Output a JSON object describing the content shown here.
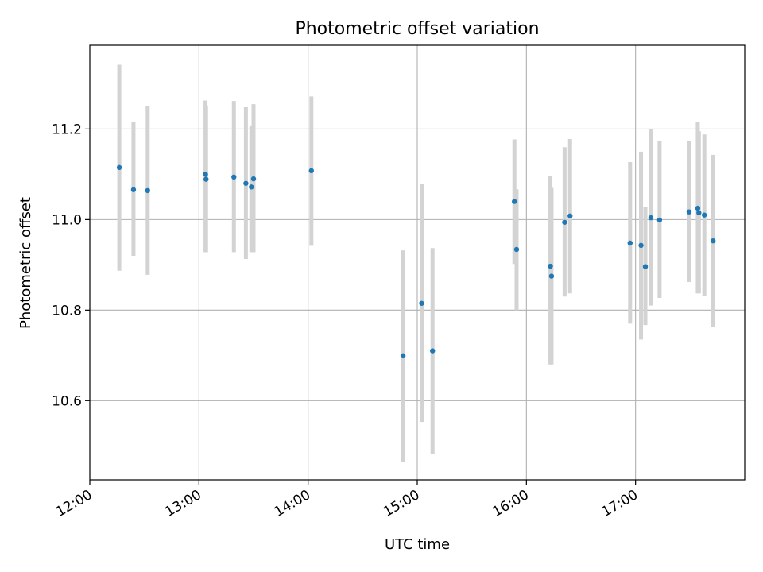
{
  "chart_data": {
    "type": "scatter",
    "title": "Photometric offset variation",
    "xlabel": "UTC time",
    "ylabel": "Photometric offset",
    "x_tick_labels": [
      "12:00",
      "13:00",
      "14:00",
      "15:00",
      "16:00",
      "17:00"
    ],
    "x_tick_hours": [
      12,
      13,
      14,
      15,
      16,
      17
    ],
    "xlim_hours": [
      12.0,
      18.0
    ],
    "y_ticks": [
      "10.6",
      "10.8",
      "11.0",
      "11.2"
    ],
    "ylim": [
      10.425,
      11.385
    ],
    "grid": true,
    "point_color": "#1f77b4",
    "errorbar_color": "#d3d3d3",
    "points": [
      {
        "t": 12.27,
        "y": 11.115,
        "lo": 10.887,
        "hi": 11.342
      },
      {
        "t": 12.4,
        "y": 11.066,
        "lo": 10.92,
        "hi": 11.215
      },
      {
        "t": 12.53,
        "y": 11.064,
        "lo": 10.878,
        "hi": 11.25
      },
      {
        "t": 13.06,
        "y": 11.1,
        "lo": 10.928,
        "hi": 11.263
      },
      {
        "t": 13.065,
        "y": 11.089,
        "lo": 10.928,
        "hi": 11.25
      },
      {
        "t": 13.32,
        "y": 11.094,
        "lo": 10.928,
        "hi": 11.262
      },
      {
        "t": 13.43,
        "y": 11.08,
        "lo": 10.913,
        "hi": 11.248
      },
      {
        "t": 13.48,
        "y": 11.072,
        "lo": 10.928,
        "hi": 11.208
      },
      {
        "t": 13.5,
        "y": 11.09,
        "lo": 10.928,
        "hi": 11.255
      },
      {
        "t": 14.03,
        "y": 11.108,
        "lo": 10.942,
        "hi": 11.272
      },
      {
        "t": 14.87,
        "y": 10.699,
        "lo": 10.465,
        "hi": 10.932
      },
      {
        "t": 15.04,
        "y": 10.815,
        "lo": 10.553,
        "hi": 11.078
      },
      {
        "t": 15.14,
        "y": 10.71,
        "lo": 10.482,
        "hi": 10.937
      },
      {
        "t": 15.89,
        "y": 11.04,
        "lo": 10.902,
        "hi": 11.177
      },
      {
        "t": 15.91,
        "y": 10.934,
        "lo": 10.8,
        "hi": 11.067
      },
      {
        "t": 16.22,
        "y": 10.897,
        "lo": 10.68,
        "hi": 11.097
      },
      {
        "t": 16.23,
        "y": 10.875,
        "lo": 10.68,
        "hi": 11.07
      },
      {
        "t": 16.35,
        "y": 10.994,
        "lo": 10.83,
        "hi": 11.16
      },
      {
        "t": 16.4,
        "y": 11.008,
        "lo": 10.837,
        "hi": 11.178
      },
      {
        "t": 16.95,
        "y": 10.948,
        "lo": 10.77,
        "hi": 11.127
      },
      {
        "t": 17.05,
        "y": 10.943,
        "lo": 10.735,
        "hi": 11.15
      },
      {
        "t": 17.09,
        "y": 10.896,
        "lo": 10.767,
        "hi": 11.028
      },
      {
        "t": 17.14,
        "y": 11.004,
        "lo": 10.81,
        "hi": 11.2
      },
      {
        "t": 17.22,
        "y": 10.999,
        "lo": 10.827,
        "hi": 11.173
      },
      {
        "t": 17.49,
        "y": 11.017,
        "lo": 10.862,
        "hi": 11.173
      },
      {
        "t": 17.57,
        "y": 11.025,
        "lo": 10.837,
        "hi": 11.215
      },
      {
        "t": 17.58,
        "y": 11.015,
        "lo": 10.837,
        "hi": 11.195
      },
      {
        "t": 17.63,
        "y": 11.01,
        "lo": 10.832,
        "hi": 11.188
      },
      {
        "t": 17.71,
        "y": 10.953,
        "lo": 10.763,
        "hi": 11.143
      }
    ]
  }
}
